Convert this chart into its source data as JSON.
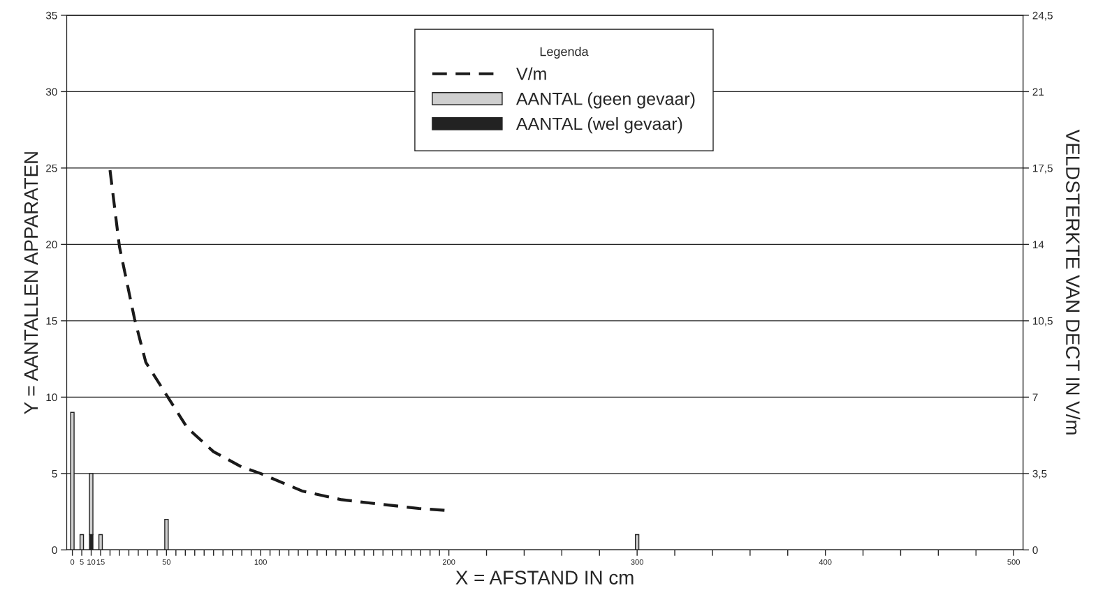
{
  "chart_data": {
    "type": "bar",
    "stacked": true,
    "legend_title": "Legenda",
    "legend": "top",
    "grid": "y",
    "xlabel": "X = AFSTAND IN cm",
    "ylabel": "Y = AANTALLEN APPARATEN",
    "y2label": "VELDSTERKTE VAN DECT IN V/m",
    "xlim": [
      -3,
      505
    ],
    "ylim": [
      0,
      35
    ],
    "y2lim": [
      0,
      24.5
    ],
    "yticks": [
      0,
      5,
      10,
      15,
      20,
      25,
      30,
      35
    ],
    "y2ticks": [
      0,
      {
        "value": 3.5,
        "label": "3,5"
      },
      7,
      {
        "value": 10.5,
        "label": "10,5"
      },
      14,
      {
        "value": 17.5,
        "label": "17,5"
      },
      21,
      {
        "value": 24.5,
        "label": "24,5"
      }
    ],
    "xticks": [
      0,
      5,
      10,
      15,
      {
        "value": 20,
        "label": null
      },
      {
        "value": 25,
        "label": null
      },
      {
        "value": 30,
        "label": null
      },
      {
        "value": 35,
        "label": null
      },
      {
        "value": 40,
        "label": null
      },
      {
        "value": 45,
        "label": null
      },
      50,
      {
        "value": 55,
        "label": null
      },
      {
        "value": 60,
        "label": null
      },
      {
        "value": 65,
        "label": null
      },
      {
        "value": 70,
        "label": null
      },
      {
        "value": 75,
        "label": null
      },
      {
        "value": 80,
        "label": null
      },
      {
        "value": 85,
        "label": null
      },
      {
        "value": 90,
        "label": null
      },
      {
        "value": 95,
        "label": null
      },
      100,
      {
        "value": 105,
        "label": null
      },
      {
        "value": 110,
        "label": null
      },
      {
        "value": 115,
        "label": null
      },
      {
        "value": 120,
        "label": null
      },
      {
        "value": 125,
        "label": null
      },
      {
        "value": 130,
        "label": null
      },
      {
        "value": 135,
        "label": null
      },
      {
        "value": 140,
        "label": null
      },
      {
        "value": 145,
        "label": null
      },
      {
        "value": 150,
        "label": null
      },
      {
        "value": 155,
        "label": null
      },
      {
        "value": 160,
        "label": null
      },
      {
        "value": 165,
        "label": null
      },
      {
        "value": 170,
        "label": null
      },
      {
        "value": 175,
        "label": null
      },
      {
        "value": 180,
        "label": null
      },
      {
        "value": 185,
        "label": null
      },
      {
        "value": 190,
        "label": null
      },
      {
        "value": 195,
        "label": null
      },
      200,
      {
        "value": 220,
        "label": null
      },
      {
        "value": 240,
        "label": null
      },
      {
        "value": 260,
        "label": null
      },
      {
        "value": 280,
        "label": null
      },
      300,
      {
        "value": 320,
        "label": null
      },
      {
        "value": 340,
        "label": null
      },
      {
        "value": 360,
        "label": null
      },
      {
        "value": 380,
        "label": null
      },
      400,
      {
        "value": 420,
        "label": null
      },
      {
        "value": 440,
        "label": null
      },
      {
        "value": 460,
        "label": null
      },
      {
        "value": 480,
        "label": null
      },
      500
    ],
    "series": [
      {
        "name": "V/m",
        "type": "line",
        "axis": "y2",
        "line_style": "dashed",
        "color": "#1a1a1a",
        "x": [
          20,
          25,
          33,
          39,
          50,
          61,
          75,
          90,
          100,
          122,
          143,
          163,
          184,
          200
        ],
        "values": [
          17.4,
          13.9,
          10.6,
          8.6,
          7.1,
          5.6,
          4.5,
          3.8,
          3.5,
          2.7,
          2.3,
          2.1,
          1.9,
          1.8
        ]
      },
      {
        "name": "AANTAL (wel gevaar)",
        "color": "#222222",
        "x": [
          0,
          5,
          10,
          15,
          50,
          300
        ],
        "values": [
          0,
          0,
          1,
          0,
          0,
          0
        ]
      },
      {
        "name": "AANTAL (geen gevaar)",
        "color": "#cfcfcf",
        "x": [
          0,
          5,
          10,
          15,
          50,
          300
        ],
        "values": [
          9,
          1,
          4,
          1,
          2,
          1
        ]
      }
    ]
  }
}
